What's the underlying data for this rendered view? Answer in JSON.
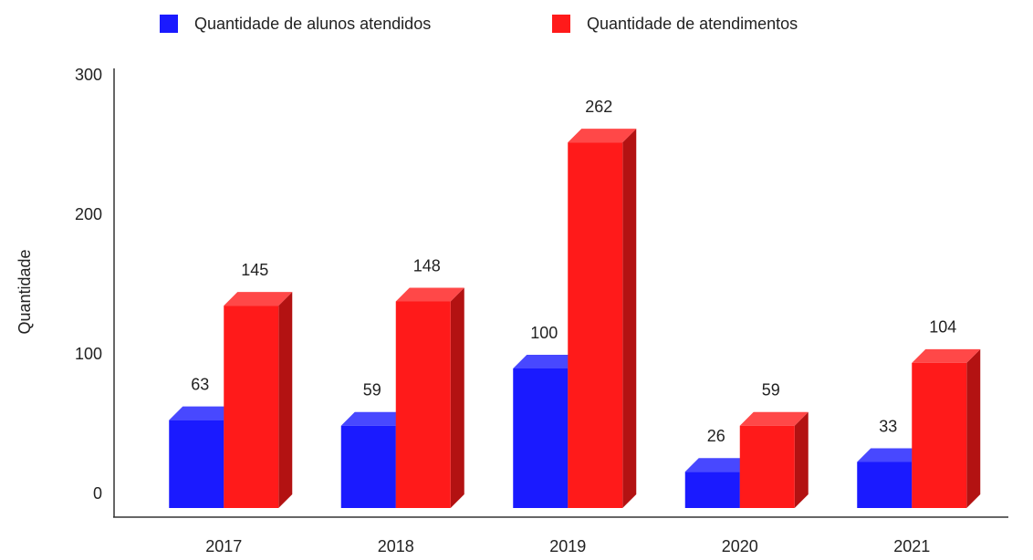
{
  "chart_data": {
    "type": "bar3d",
    "categories": [
      "2017",
      "2018",
      "2019",
      "2020",
      "2021"
    ],
    "series": [
      {
        "name": "Quantidade de alunos atendidos",
        "color": "#1a1aff",
        "values": [
          63,
          59,
          100,
          26,
          33
        ]
      },
      {
        "name": "Quantidade de atendimentos",
        "color": "#ff1a1a",
        "values": [
          145,
          148,
          262,
          59,
          104
        ]
      }
    ],
    "ylabel": "Quantidade",
    "ylim": [
      0,
      300
    ],
    "yticks": [
      0,
      100,
      200,
      300
    ],
    "legend": "top",
    "grid": false
  }
}
